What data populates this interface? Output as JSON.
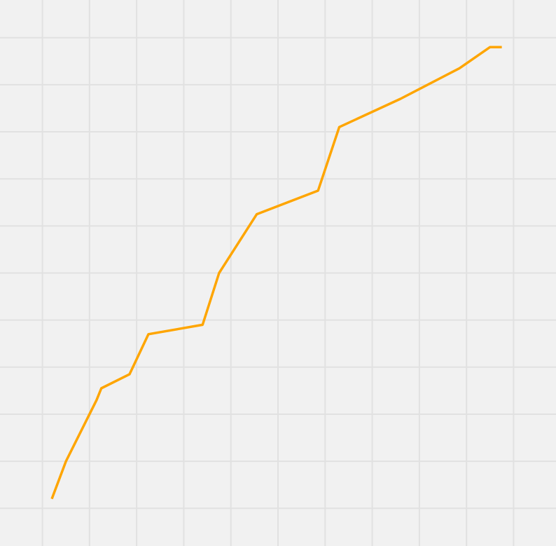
{
  "colors": {
    "background": "#f1f1f1",
    "grid": "#e1e1e1",
    "line": "#fea500"
  },
  "chart_data": {
    "type": "line",
    "title": "",
    "xlabel": "",
    "ylabel": "",
    "grid": true,
    "legend": "none",
    "xlim": [
      -0.9,
      10.9
    ],
    "ylim": [
      -0.8,
      10.8
    ],
    "x": [
      0.2,
      0.5,
      1.15,
      1.25,
      1.85,
      2.25,
      3.4,
      3.75,
      4.55,
      5.85,
      6.3,
      7.6,
      8.85,
      9.5,
      9.75
    ],
    "series": [
      {
        "values": [
          0.2,
          1.0,
          2.3,
          2.55,
          2.85,
          3.7,
          3.9,
          5.0,
          6.25,
          6.75,
          8.1,
          8.7,
          9.35,
          9.8,
          9.8
        ]
      }
    ]
  }
}
